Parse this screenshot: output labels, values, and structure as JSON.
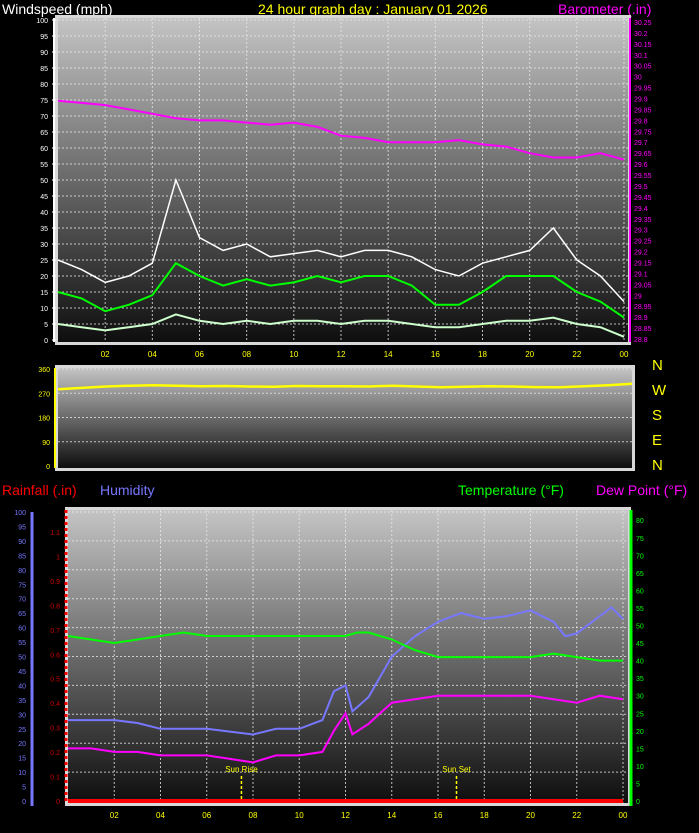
{
  "titles": {
    "windspeed": "Windspeed (mph)",
    "graph_day": "24 hour graph day : January 01 2026",
    "barometer": "Barometer (.in)",
    "rainfall": "Rainfall (.in)",
    "humidity": "Humidity",
    "temperature": "Temperature (°F)",
    "dewpoint": "Dew Point (°F)"
  },
  "compass": [
    "N",
    "W",
    "S",
    "E",
    "N"
  ],
  "colors": {
    "windspeed_title": "#ffffff",
    "graph_day": "#ffff00",
    "barometer": "#ff00ff",
    "gust": "#ffffff",
    "wind_avg": "#00ff00",
    "wind_low": "#ccffcc",
    "direction": "#ffff00",
    "rainfall": "#ff0000",
    "humidity": "#7777ff",
    "temperature": "#00ff00",
    "dewpoint": "#ff00ff",
    "sun": "#ffff00"
  },
  "x_tick_labels": [
    "02",
    "04",
    "06",
    "08",
    "10",
    "12",
    "14",
    "16",
    "18",
    "20",
    "22",
    "00"
  ],
  "chart_data": [
    {
      "type": "line",
      "title": "Windspeed (mph) / Barometer (.in)",
      "xlabel": "",
      "xlim": [
        0,
        24
      ],
      "grid": true,
      "left_axis": {
        "label": "Windspeed (mph)",
        "ylim": [
          0,
          100
        ],
        "ticks": [
          "0",
          "5",
          "10",
          "15",
          "20",
          "25",
          "30",
          "35",
          "40",
          "45",
          "50",
          "55",
          "60",
          "65",
          "70",
          "75",
          "80",
          "85",
          "90",
          "95",
          "100"
        ]
      },
      "right_axis": {
        "label": "Barometer (.in)",
        "ylim": [
          28.8,
          30.25
        ],
        "ticks": [
          "28.8",
          "28.85",
          "28.9",
          "28.95",
          "29",
          "29.05",
          "29.1",
          "29.15",
          "29.2",
          "29.25",
          "29.3",
          "29.35",
          "29.4",
          "29.45",
          "29.5",
          "29.55",
          "29.6",
          "29.65",
          "29.7",
          "29.75",
          "29.8",
          "29.85",
          "29.9",
          "29.95",
          "30",
          "30.05",
          "30.1",
          "30.15",
          "30.2",
          "30.25"
        ]
      },
      "x": [
        0,
        1,
        2,
        3,
        4,
        5,
        6,
        7,
        8,
        9,
        10,
        11,
        12,
        13,
        14,
        15,
        16,
        17,
        18,
        19,
        20,
        21,
        22,
        23,
        24
      ],
      "series": [
        {
          "key": "gust",
          "axis": "left",
          "values": [
            25,
            22,
            18,
            20,
            24,
            50,
            32,
            28,
            30,
            26,
            27,
            28,
            26,
            28,
            28,
            26,
            22,
            20,
            24,
            26,
            28,
            35,
            25,
            20,
            12
          ]
        },
        {
          "key": "wind_avg",
          "axis": "left",
          "values": [
            15,
            13,
            9,
            11,
            14,
            24,
            20,
            17,
            19,
            17,
            18,
            20,
            18,
            20,
            20,
            17,
            11,
            11,
            15,
            20,
            20,
            20,
            15,
            12,
            7
          ]
        },
        {
          "key": "wind_low",
          "axis": "left",
          "values": [
            5,
            4,
            3,
            4,
            5,
            8,
            6,
            5,
            6,
            5,
            6,
            6,
            5,
            6,
            6,
            5,
            4,
            4,
            5,
            6,
            6,
            7,
            5,
            4,
            1
          ]
        },
        {
          "key": "barometer",
          "axis": "right",
          "values": [
            29.89,
            29.88,
            29.87,
            29.85,
            29.83,
            29.81,
            29.8,
            29.8,
            29.79,
            29.78,
            29.79,
            29.77,
            29.73,
            29.72,
            29.7,
            29.7,
            29.7,
            29.71,
            29.69,
            29.68,
            29.65,
            29.63,
            29.63,
            29.65,
            29.62
          ]
        }
      ]
    },
    {
      "type": "line",
      "title": "",
      "xlim": [
        0,
        24
      ],
      "grid": true,
      "left_axis": {
        "ylim": [
          0,
          360
        ],
        "ticks": [
          "0",
          "90",
          "180",
          "270",
          "360"
        ]
      },
      "x": [
        0,
        1,
        2,
        3,
        4,
        5,
        6,
        7,
        8,
        9,
        10,
        11,
        12,
        13,
        14,
        15,
        16,
        17,
        18,
        19,
        20,
        21,
        22,
        23,
        24
      ],
      "series": [
        {
          "key": "direction",
          "values": [
            285,
            290,
            295,
            298,
            300,
            298,
            296,
            297,
            295,
            294,
            297,
            296,
            296,
            295,
            298,
            295,
            292,
            294,
            296,
            295,
            293,
            292,
            296,
            300,
            305
          ]
        }
      ]
    },
    {
      "type": "line",
      "title": "",
      "xlim": [
        0,
        24
      ],
      "grid": true,
      "humidity_axis": {
        "label": "Humidity",
        "ylim": [
          0,
          100
        ],
        "ticks": [
          "0",
          "5",
          "10",
          "15",
          "20",
          "25",
          "30",
          "35",
          "40",
          "45",
          "50",
          "55",
          "60",
          "65",
          "70",
          "75",
          "80",
          "85",
          "90",
          "95",
          "100"
        ]
      },
      "rain_axis": {
        "label": "Rainfall (.in)",
        "ylim": [
          0,
          1.1
        ],
        "ticks": [
          "0",
          "0.1",
          "0.2",
          "0.3",
          "0.4",
          "0.5",
          "0.6",
          "0.7",
          "0.8",
          "0.9",
          "1",
          "1.1"
        ]
      },
      "temp_axis": {
        "label": "Temperature (°F) / Dew Point (°F)",
        "ylim": [
          0,
          80
        ],
        "ticks": [
          "0",
          "5",
          "10",
          "15",
          "20",
          "25",
          "30",
          "35",
          "40",
          "45",
          "50",
          "55",
          "60",
          "65",
          "70",
          "75",
          "80"
        ]
      },
      "series": [
        {
          "key": "humidity",
          "axis": "humidity",
          "x": [
            0,
            1,
            2,
            3,
            4,
            5,
            6,
            7,
            8,
            9,
            10,
            11,
            11.5,
            12,
            12.3,
            13,
            14,
            15,
            16,
            17,
            18,
            19,
            20,
            21,
            21.5,
            22,
            23,
            23.5,
            24
          ],
          "values": [
            28,
            28,
            28,
            27,
            25,
            25,
            25,
            24,
            23,
            25,
            25,
            28,
            38,
            40,
            31,
            36,
            50,
            57,
            62,
            65,
            63,
            64,
            66,
            62,
            57,
            58,
            64,
            67,
            63
          ]
        },
        {
          "key": "temperature",
          "axis": "temp",
          "x": [
            0,
            1,
            2,
            3,
            4,
            5,
            6,
            7,
            8,
            9,
            10,
            11,
            12,
            12.5,
            13,
            14,
            15,
            16,
            17,
            18,
            19,
            20,
            21,
            22,
            23,
            24
          ],
          "values": [
            47,
            46,
            45,
            46,
            47,
            48,
            47,
            47,
            47,
            47,
            47,
            47,
            47,
            48,
            48,
            46,
            43,
            41,
            41,
            41,
            41,
            41,
            42,
            41,
            40,
            40
          ]
        },
        {
          "key": "dewpoint",
          "axis": "temp",
          "x": [
            0,
            1,
            2,
            3,
            4,
            5,
            6,
            7,
            8,
            9,
            10,
            11,
            11.5,
            12,
            12.3,
            13,
            14,
            15,
            16,
            17,
            18,
            19,
            20,
            21,
            22,
            23,
            24
          ],
          "values": [
            15,
            15,
            14,
            14,
            13,
            13,
            13,
            12,
            11,
            13,
            13,
            14,
            20,
            25,
            19,
            22,
            28,
            29,
            30,
            30,
            30,
            30,
            30,
            29,
            28,
            30,
            29
          ]
        },
        {
          "key": "rainfall",
          "axis": "rain",
          "x": [
            0,
            24
          ],
          "values": [
            0,
            0
          ]
        }
      ],
      "annotations": [
        {
          "label": "Sun Rise",
          "x": 7.5
        },
        {
          "label": "Sun Set",
          "x": 16.8
        }
      ]
    }
  ]
}
